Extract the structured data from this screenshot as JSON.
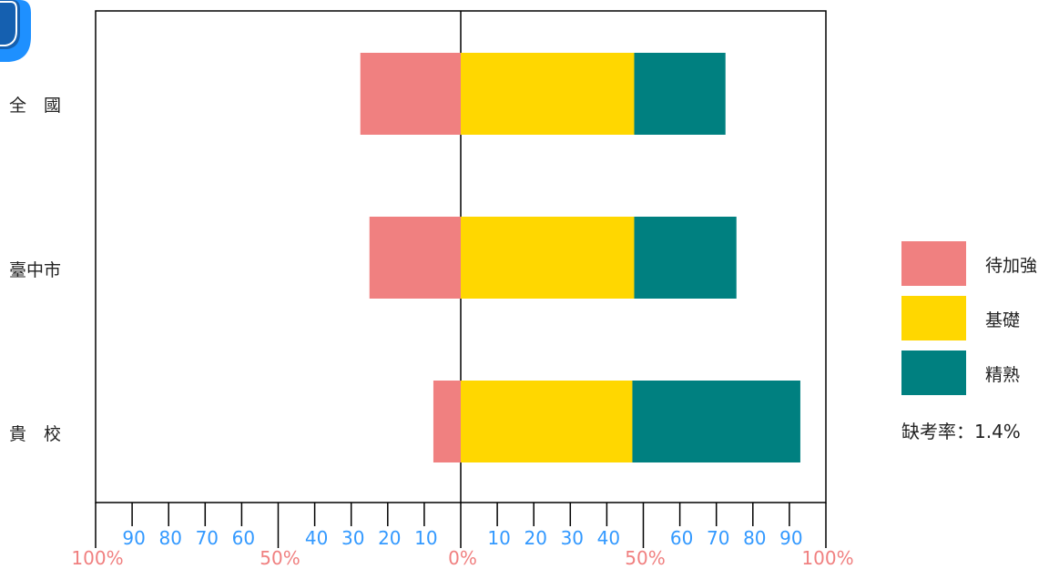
{
  "chart_data": {
    "type": "bar",
    "orientation": "horizontal-diverging",
    "categories": [
      "全　國",
      "臺中市",
      "貴　校"
    ],
    "series": [
      {
        "name": "待加強",
        "color": "#F08080",
        "values": [
          27.5,
          25.0,
          7.5
        ],
        "direction": "left"
      },
      {
        "name": "基礎",
        "color": "#FFD700",
        "values": [
          47.5,
          47.5,
          47.0
        ],
        "direction": "right"
      },
      {
        "name": "精熟",
        "color": "#008080",
        "values": [
          25.0,
          28.0,
          46.0
        ],
        "direction": "right"
      }
    ],
    "xlim": [
      -100,
      100
    ],
    "minor_tick_labels": [
      "90",
      "80",
      "70",
      "60",
      "40",
      "30",
      "20",
      "10",
      "10",
      "20",
      "30",
      "40",
      "60",
      "70",
      "80",
      "90"
    ],
    "major_tick_labels": [
      "100%",
      "50%",
      "0%",
      "50%",
      "100%"
    ],
    "minor_tick_color": "#3399FF",
    "major_tick_color": "#F08080"
  },
  "legend": {
    "items": [
      {
        "label": "待加強",
        "color": "#F08080"
      },
      {
        "label": "基礎",
        "color": "#FFD700"
      },
      {
        "label": "精熟",
        "color": "#008080"
      }
    ],
    "absent_rate": "缺考率：1.4%"
  },
  "decor": {
    "corner_color": "#1E90FF"
  }
}
